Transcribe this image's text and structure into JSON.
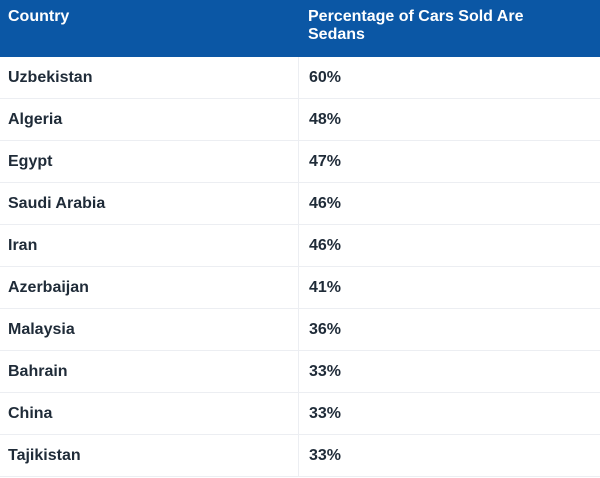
{
  "table": {
    "headers": [
      "Country",
      "Percentage of Cars Sold Are Sedans"
    ],
    "rows": [
      {
        "country": "Uzbekistan",
        "value": "60%"
      },
      {
        "country": "Algeria",
        "value": "48%"
      },
      {
        "country": "Egypt",
        "value": "47%"
      },
      {
        "country": "Saudi Arabia",
        "value": "46%"
      },
      {
        "country": "Iran",
        "value": "46%"
      },
      {
        "country": "Azerbaijan",
        "value": "41%"
      },
      {
        "country": "Malaysia",
        "value": "36%"
      },
      {
        "country": "Bahrain",
        "value": "33%"
      },
      {
        "country": "China",
        "value": "33%"
      },
      {
        "country": "Tajikistan",
        "value": "33%"
      }
    ]
  },
  "colors": {
    "header_bg": "#0b57a5",
    "header_text": "#ffffff",
    "body_text": "#1f2b38",
    "row_bg": "#ffffff",
    "border": "#eceef2"
  },
  "chart_data": {
    "type": "table",
    "columns": [
      "Country",
      "Percentage of Cars Sold Are Sedans"
    ],
    "categories": [
      "Uzbekistan",
      "Algeria",
      "Egypt",
      "Saudi Arabia",
      "Iran",
      "Azerbaijan",
      "Malaysia",
      "Bahrain",
      "China",
      "Tajikistan"
    ],
    "values": [
      60,
      48,
      47,
      46,
      46,
      41,
      36,
      33,
      33,
      33
    ],
    "unit": "%"
  }
}
